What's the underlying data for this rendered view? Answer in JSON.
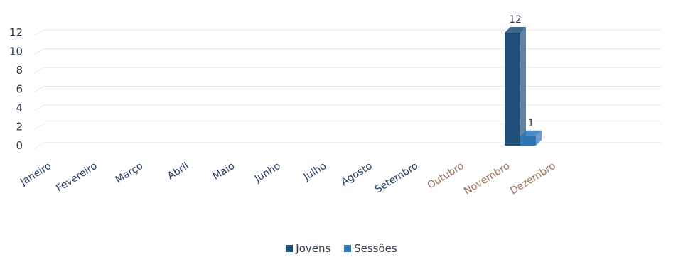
{
  "chart_data": {
    "type": "bar",
    "title": "",
    "xlabel": "",
    "ylabel": "",
    "categories": [
      "Janeiro",
      "Fevereiro",
      "Março",
      "Abril",
      "Maio",
      "Junho",
      "Julho",
      "Agosto",
      "Setembro",
      "Outubro",
      "Novembro",
      "Dezembro"
    ],
    "series": [
      {
        "name": "Jovens",
        "values": [
          0,
          0,
          0,
          0,
          0,
          0,
          0,
          0,
          0,
          0,
          12,
          0
        ],
        "color": "#1f4e79"
      },
      {
        "name": "Sessões",
        "values": [
          0,
          0,
          0,
          0,
          0,
          0,
          0,
          0,
          0,
          0,
          1,
          0
        ],
        "color": "#2e75b6"
      }
    ],
    "data_labels": [
      {
        "series": "Jovens",
        "category": "Novembro",
        "text": "12"
      },
      {
        "series": "Sessões",
        "category": "Novembro",
        "text": "1"
      }
    ],
    "yticks": [
      "0",
      "2",
      "4",
      "6",
      "8",
      "10",
      "12"
    ],
    "ylim": [
      0,
      12
    ],
    "grid": true,
    "legend_position": "bottom",
    "muted_category_color": "#a06a55",
    "category_color": "#1f3a63"
  }
}
